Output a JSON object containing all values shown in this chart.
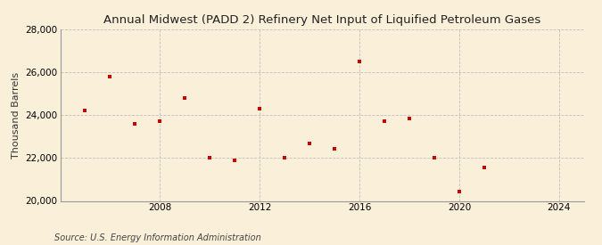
{
  "title": "Annual Midwest (PADD 2) Refinery Net Input of Liquified Petroleum Gases",
  "ylabel": "Thousand Barrels",
  "source": "Source: U.S. Energy Information Administration",
  "background_color": "#faefd8",
  "marker_color": "#cc0000",
  "years": [
    2005,
    2006,
    2007,
    2008,
    2009,
    2010,
    2011,
    2012,
    2013,
    2014,
    2015,
    2016,
    2017,
    2018,
    2019,
    2020,
    2021
  ],
  "values": [
    24200,
    25800,
    23600,
    23700,
    24800,
    22000,
    21900,
    24300,
    22000,
    22700,
    22450,
    26500,
    23700,
    23850,
    22000,
    20450,
    21550
  ],
  "xlim": [
    2004,
    2025
  ],
  "ylim": [
    20000,
    28000
  ],
  "yticks": [
    20000,
    22000,
    24000,
    26000,
    28000
  ],
  "xticks": [
    2008,
    2012,
    2016,
    2020,
    2024
  ],
  "grid_color": "#bbbbbb",
  "title_fontsize": 9.5,
  "ylabel_fontsize": 8,
  "tick_fontsize": 7.5,
  "source_fontsize": 7
}
